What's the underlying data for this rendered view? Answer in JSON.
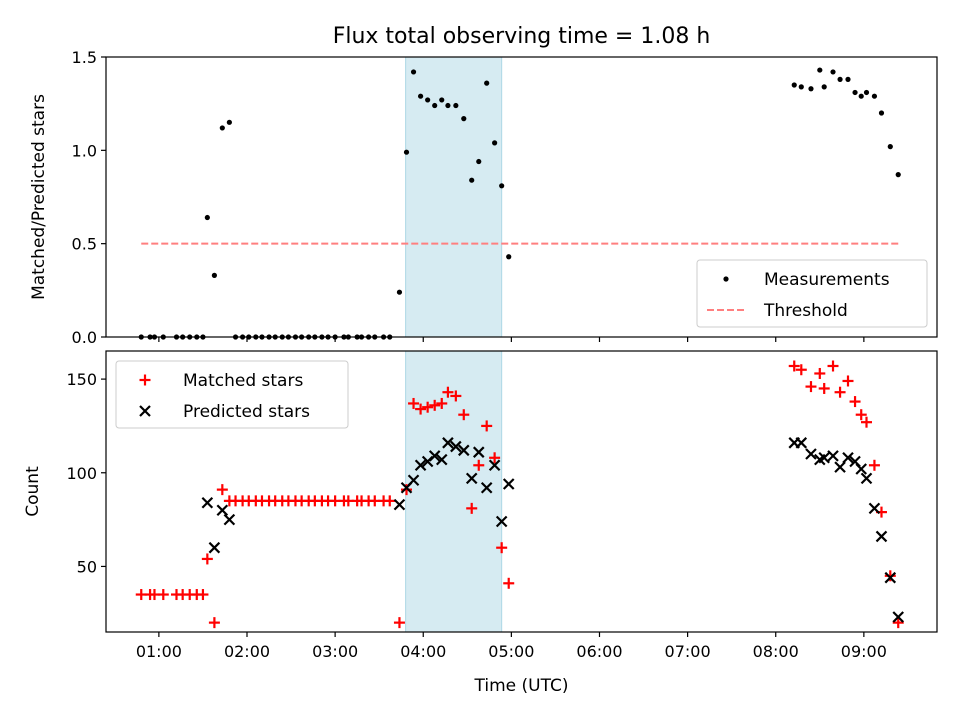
{
  "chart_data": {
    "title": "Flux total observing time = 1.08 h",
    "xlabel": "Time (UTC)",
    "x_unit": "hour (UTC)",
    "x_ticks": [
      {
        "value": 1,
        "label": "01:00"
      },
      {
        "value": 2,
        "label": "02:00"
      },
      {
        "value": 3,
        "label": "03:00"
      },
      {
        "value": 4,
        "label": "04:00"
      },
      {
        "value": 5,
        "label": "05:00"
      },
      {
        "value": 6,
        "label": "06:00"
      },
      {
        "value": 7,
        "label": "07:00"
      },
      {
        "value": 8,
        "label": "08:00"
      },
      {
        "value": 9,
        "label": "09:00"
      }
    ],
    "xlim": [
      0.4,
      9.83
    ],
    "highlight_span": {
      "x": [
        3.8,
        4.89
      ],
      "color": "#add8e6"
    },
    "panels": [
      {
        "type": "scatter",
        "ylabel": "Matched/Predicted stars",
        "ylim": [
          0,
          1.5
        ],
        "y_ticks": [
          {
            "value": 0,
            "label": "0.0"
          },
          {
            "value": 0.5,
            "label": "0.5"
          },
          {
            "value": 1.0,
            "label": "1.0"
          },
          {
            "value": 1.5,
            "label": "1.5"
          }
        ],
        "legend": {
          "position": "lower-right",
          "entries": [
            {
              "label": "Measurements",
              "marker": "dot",
              "color": "#000000"
            },
            {
              "label": "Threshold",
              "marker": "dashed-line",
              "color": "#ff7f7f"
            }
          ]
        },
        "threshold": {
          "name": "Threshold",
          "y": 0.5,
          "x": [
            0.8,
            9.4
          ],
          "color": "#ff7f7f"
        },
        "series": [
          {
            "name": "Measurements",
            "marker": "dot",
            "color": "#000000",
            "points": [
              [
                0.8,
                0
              ],
              [
                0.9,
                0
              ],
              [
                0.95,
                0
              ],
              [
                1.05,
                0
              ],
              [
                1.2,
                0
              ],
              [
                1.27,
                0
              ],
              [
                1.35,
                0
              ],
              [
                1.43,
                0
              ],
              [
                1.5,
                0
              ],
              [
                1.55,
                0.64
              ],
              [
                1.63,
                0.33
              ],
              [
                1.72,
                1.12
              ],
              [
                1.8,
                1.15
              ],
              [
                1.87,
                0
              ],
              [
                1.95,
                0
              ],
              [
                2.02,
                0
              ],
              [
                2.1,
                0
              ],
              [
                2.17,
                0
              ],
              [
                2.25,
                0
              ],
              [
                2.32,
                0
              ],
              [
                2.4,
                0
              ],
              [
                2.47,
                0
              ],
              [
                2.55,
                0
              ],
              [
                2.62,
                0
              ],
              [
                2.7,
                0
              ],
              [
                2.77,
                0
              ],
              [
                2.85,
                0
              ],
              [
                2.92,
                0
              ],
              [
                3.0,
                0
              ],
              [
                3.1,
                0
              ],
              [
                3.15,
                0
              ],
              [
                3.25,
                0
              ],
              [
                3.3,
                0
              ],
              [
                3.38,
                0
              ],
              [
                3.45,
                0
              ],
              [
                3.55,
                0
              ],
              [
                3.62,
                0
              ],
              [
                3.73,
                0.24
              ],
              [
                3.81,
                0.99
              ],
              [
                3.89,
                1.42
              ],
              [
                3.97,
                1.29
              ],
              [
                4.05,
                1.27
              ],
              [
                4.13,
                1.24
              ],
              [
                4.21,
                1.27
              ],
              [
                4.28,
                1.24
              ],
              [
                4.37,
                1.24
              ],
              [
                4.46,
                1.17
              ],
              [
                4.55,
                0.84
              ],
              [
                4.63,
                0.94
              ],
              [
                4.72,
                1.36
              ],
              [
                4.81,
                1.04
              ],
              [
                4.89,
                0.81
              ],
              [
                4.97,
                0.43
              ],
              [
                8.21,
                1.35
              ],
              [
                8.29,
                1.34
              ],
              [
                8.4,
                1.33
              ],
              [
                8.5,
                1.43
              ],
              [
                8.55,
                1.34
              ],
              [
                8.65,
                1.42
              ],
              [
                8.73,
                1.38
              ],
              [
                8.82,
                1.38
              ],
              [
                8.9,
                1.31
              ],
              [
                8.97,
                1.29
              ],
              [
                9.03,
                1.31
              ],
              [
                9.12,
                1.29
              ],
              [
                9.2,
                1.2
              ],
              [
                9.3,
                1.02
              ],
              [
                9.39,
                0.87
              ]
            ]
          }
        ]
      },
      {
        "type": "scatter",
        "ylabel": "Count",
        "ylim": [
          15,
          165
        ],
        "y_ticks": [
          {
            "value": 50,
            "label": "50"
          },
          {
            "value": 100,
            "label": "100"
          },
          {
            "value": 150,
            "label": "150"
          }
        ],
        "legend": {
          "position": "upper-left",
          "entries": [
            {
              "label": "Matched stars",
              "marker": "plus",
              "color": "#ff0000"
            },
            {
              "label": "Predicted stars",
              "marker": "x",
              "color": "#000000"
            }
          ]
        },
        "series": [
          {
            "name": "Matched stars",
            "marker": "plus",
            "color": "#ff0000",
            "points": [
              [
                0.8,
                35
              ],
              [
                0.9,
                35
              ],
              [
                0.95,
                35
              ],
              [
                1.05,
                35
              ],
              [
                1.2,
                35
              ],
              [
                1.27,
                35
              ],
              [
                1.35,
                35
              ],
              [
                1.43,
                35
              ],
              [
                1.5,
                35
              ],
              [
                1.55,
                54
              ],
              [
                1.63,
                20
              ],
              [
                1.72,
                91
              ],
              [
                1.8,
                85
              ],
              [
                1.87,
                85
              ],
              [
                1.95,
                85
              ],
              [
                2.02,
                85
              ],
              [
                2.1,
                85
              ],
              [
                2.17,
                85
              ],
              [
                2.25,
                85
              ],
              [
                2.32,
                85
              ],
              [
                2.4,
                85
              ],
              [
                2.47,
                85
              ],
              [
                2.55,
                85
              ],
              [
                2.62,
                85
              ],
              [
                2.7,
                85
              ],
              [
                2.77,
                85
              ],
              [
                2.85,
                85
              ],
              [
                2.92,
                85
              ],
              [
                3.0,
                85
              ],
              [
                3.1,
                85
              ],
              [
                3.15,
                85
              ],
              [
                3.25,
                85
              ],
              [
                3.3,
                85
              ],
              [
                3.38,
                85
              ],
              [
                3.45,
                85
              ],
              [
                3.55,
                85
              ],
              [
                3.62,
                85
              ],
              [
                3.73,
                20
              ],
              [
                3.81,
                91
              ],
              [
                3.89,
                137
              ],
              [
                3.97,
                134
              ],
              [
                4.05,
                135
              ],
              [
                4.13,
                136
              ],
              [
                4.21,
                137
              ],
              [
                4.28,
                143
              ],
              [
                4.37,
                141
              ],
              [
                4.46,
                131
              ],
              [
                4.55,
                81
              ],
              [
                4.63,
                104
              ],
              [
                4.72,
                125
              ],
              [
                4.81,
                108
              ],
              [
                4.89,
                60
              ],
              [
                4.97,
                41
              ],
              [
                8.21,
                157
              ],
              [
                8.29,
                155
              ],
              [
                8.4,
                146
              ],
              [
                8.5,
                153
              ],
              [
                8.55,
                145
              ],
              [
                8.65,
                157
              ],
              [
                8.73,
                143
              ],
              [
                8.82,
                149
              ],
              [
                8.9,
                138
              ],
              [
                8.97,
                131
              ],
              [
                9.03,
                127
              ],
              [
                9.12,
                104
              ],
              [
                9.2,
                79
              ],
              [
                9.3,
                45
              ],
              [
                9.39,
                20
              ]
            ]
          },
          {
            "name": "Predicted stars",
            "marker": "x",
            "color": "#000000",
            "points": [
              [
                1.55,
                84
              ],
              [
                1.63,
                60
              ],
              [
                1.72,
                80
              ],
              [
                1.8,
                75
              ],
              [
                3.73,
                83
              ],
              [
                3.81,
                92
              ],
              [
                3.89,
                96
              ],
              [
                3.97,
                104
              ],
              [
                4.05,
                106
              ],
              [
                4.13,
                109
              ],
              [
                4.21,
                107
              ],
              [
                4.28,
                116
              ],
              [
                4.37,
                114
              ],
              [
                4.46,
                112
              ],
              [
                4.55,
                97
              ],
              [
                4.63,
                111
              ],
              [
                4.72,
                92
              ],
              [
                4.81,
                104
              ],
              [
                4.89,
                74
              ],
              [
                4.97,
                94
              ],
              [
                8.21,
                116
              ],
              [
                8.29,
                116
              ],
              [
                8.4,
                110
              ],
              [
                8.5,
                107
              ],
              [
                8.55,
                108
              ],
              [
                8.65,
                109
              ],
              [
                8.73,
                103
              ],
              [
                8.82,
                108
              ],
              [
                8.9,
                106
              ],
              [
                8.97,
                102
              ],
              [
                9.03,
                97
              ],
              [
                9.12,
                81
              ],
              [
                9.2,
                66
              ],
              [
                9.3,
                44
              ],
              [
                9.39,
                23
              ]
            ]
          }
        ]
      }
    ]
  }
}
